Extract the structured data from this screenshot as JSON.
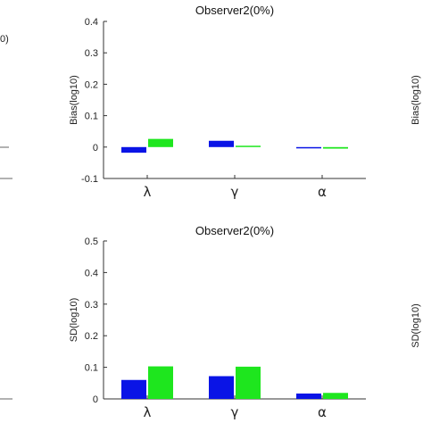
{
  "chart_data": [
    {
      "type": "bar",
      "title": "Observer2(0%)",
      "ylabel": "Bias(log10)",
      "categories": [
        "λ",
        "γ",
        "α"
      ],
      "ylim": [
        -0.1,
        0.4
      ],
      "yticks": [
        "0.4",
        "0.3",
        "0.2",
        "0.1",
        "0",
        "-0.1"
      ],
      "series": [
        {
          "color": "#0a14e6",
          "values": [
            -0.018,
            0.02,
            -0.002
          ]
        },
        {
          "color": "#1ee61e",
          "values": [
            0.026,
            0.003,
            -0.005
          ]
        }
      ]
    },
    {
      "type": "bar",
      "title": "Observer2(0%)",
      "ylabel": "SD(log10)",
      "categories": [
        "λ",
        "γ",
        "α"
      ],
      "ylim": [
        0,
        0.5
      ],
      "yticks": [
        "0.5",
        "0.4",
        "0.3",
        "0.2",
        "0.1",
        "0"
      ],
      "series": [
        {
          "color": "#0a14e6",
          "values": [
            0.06,
            0.072,
            0.017
          ]
        },
        {
          "color": "#1ee61e",
          "values": [
            0.103,
            0.102,
            0.019
          ]
        }
      ]
    }
  ],
  "cropped_neighbors": {
    "left_fragment_text": "0)",
    "right_top_label": "Bias(log10)",
    "right_bottom_label": "SD(log10)"
  }
}
